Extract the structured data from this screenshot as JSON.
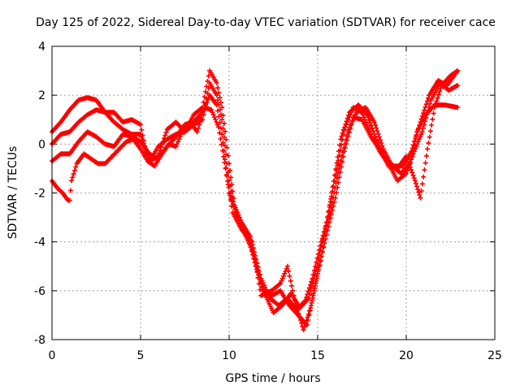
{
  "chart_data": {
    "type": "scatter",
    "title": "Day 125 of 2022, Sidereal Day-to-day VTEC variation (SDTVAR) for receiver cace",
    "xlabel": "GPS time / hours",
    "ylabel": "SDTVAR / TECUs",
    "xlim": [
      0,
      25
    ],
    "ylim": [
      -8,
      4
    ],
    "xticks": [
      "0",
      "5",
      "10",
      "15",
      "20",
      "25"
    ],
    "yticks": [
      "-8",
      "-6",
      "-4",
      "-2",
      "0",
      "2",
      "4"
    ],
    "grid": true,
    "marker": "+",
    "color": "#ff0000",
    "series": [
      {
        "points": [
          [
            0.0,
            0.5
          ],
          [
            0.5,
            0.9
          ],
          [
            1.0,
            1.4
          ],
          [
            1.5,
            1.8
          ],
          [
            2.0,
            1.9
          ],
          [
            2.5,
            1.8
          ],
          [
            3.0,
            1.3
          ],
          [
            3.5,
            1.3
          ],
          [
            4.0,
            0.9
          ],
          [
            4.5,
            1.0
          ],
          [
            5.0,
            0.8
          ],
          [
            5.3,
            -0.3
          ],
          [
            5.6,
            -0.6
          ],
          [
            6.0,
            -0.1
          ],
          [
            6.5,
            0.2
          ],
          [
            7.0,
            0.4
          ],
          [
            7.5,
            0.5
          ],
          [
            8.0,
            1.2
          ],
          [
            8.5,
            1.5
          ],
          [
            8.9,
            3.0
          ],
          [
            9.3,
            2.5
          ],
          [
            9.6,
            1.5
          ],
          [
            10.0,
            -0.8
          ],
          [
            10.3,
            -2.5
          ],
          [
            10.7,
            -3.2
          ],
          [
            11.2,
            -3.8
          ],
          [
            11.8,
            -5.5
          ],
          [
            12.3,
            -6.3
          ],
          [
            12.8,
            -6.6
          ],
          [
            13.3,
            -6.3
          ],
          [
            13.8,
            -6.8
          ],
          [
            14.3,
            -6.4
          ],
          [
            14.7,
            -5.5
          ],
          [
            15.2,
            -4.0
          ],
          [
            15.7,
            -2.8
          ],
          [
            16.2,
            -1.0
          ],
          [
            16.7,
            0.5
          ],
          [
            17.2,
            1.3
          ],
          [
            17.7,
            1.5
          ],
          [
            18.2,
            0.9
          ],
          [
            18.7,
            -0.2
          ],
          [
            19.2,
            -0.9
          ],
          [
            19.7,
            -1.2
          ],
          [
            20.2,
            -0.8
          ],
          [
            20.6,
            0.5
          ],
          [
            21.1,
            1.2
          ],
          [
            21.6,
            1.6
          ],
          [
            22.2,
            1.6
          ],
          [
            22.9,
            1.5
          ]
        ]
      },
      {
        "points": [
          [
            0.0,
            0.0
          ],
          [
            0.5,
            0.4
          ],
          [
            1.0,
            0.5
          ],
          [
            1.5,
            0.9
          ],
          [
            2.0,
            1.2
          ],
          [
            2.5,
            1.4
          ],
          [
            3.0,
            1.3
          ],
          [
            3.5,
            0.9
          ],
          [
            4.0,
            0.6
          ],
          [
            4.5,
            0.4
          ],
          [
            5.0,
            0.4
          ],
          [
            5.5,
            -0.7
          ],
          [
            6.0,
            -0.5
          ],
          [
            6.5,
            0.6
          ],
          [
            7.0,
            0.9
          ],
          [
            7.5,
            0.5
          ],
          [
            8.0,
            0.8
          ],
          [
            8.5,
            1.0
          ],
          [
            8.9,
            2.5
          ],
          [
            9.3,
            2.0
          ],
          [
            9.6,
            1.0
          ],
          [
            10.0,
            -1.5
          ],
          [
            10.4,
            -3.0
          ],
          [
            10.9,
            -3.7
          ],
          [
            11.4,
            -4.5
          ],
          [
            11.9,
            -6.0
          ],
          [
            12.4,
            -6.2
          ],
          [
            12.9,
            -6.0
          ],
          [
            13.4,
            -6.6
          ],
          [
            13.9,
            -7.0
          ],
          [
            14.4,
            -7.4
          ],
          [
            14.8,
            -6.0
          ],
          [
            15.3,
            -4.2
          ],
          [
            15.8,
            -2.0
          ],
          [
            16.3,
            0.2
          ],
          [
            16.8,
            1.3
          ],
          [
            17.3,
            1.6
          ],
          [
            17.8,
            1.2
          ],
          [
            18.3,
            0.2
          ],
          [
            18.8,
            -0.6
          ],
          [
            19.3,
            -0.9
          ],
          [
            19.8,
            -0.9
          ],
          [
            20.3,
            -0.3
          ],
          [
            20.8,
            0.9
          ],
          [
            21.3,
            2.0
          ],
          [
            21.8,
            2.6
          ],
          [
            22.3,
            2.4
          ],
          [
            22.9,
            3.0
          ]
        ]
      },
      {
        "points": [
          [
            0.0,
            -0.7
          ],
          [
            0.5,
            -0.4
          ],
          [
            1.0,
            -0.4
          ],
          [
            1.5,
            0.1
          ],
          [
            2.0,
            0.5
          ],
          [
            2.5,
            0.3
          ],
          [
            3.0,
            0.0
          ],
          [
            3.5,
            -0.1
          ],
          [
            4.0,
            0.4
          ],
          [
            4.5,
            0.3
          ],
          [
            5.0,
            0.1
          ],
          [
            5.5,
            -0.4
          ],
          [
            6.0,
            -0.6
          ],
          [
            6.5,
            -0.1
          ],
          [
            7.0,
            0.3
          ],
          [
            7.5,
            0.8
          ],
          [
            8.0,
            0.9
          ],
          [
            8.5,
            1.3
          ],
          [
            8.9,
            2.0
          ],
          [
            9.3,
            1.6
          ],
          [
            9.6,
            0.4
          ],
          [
            10.0,
            -2.0
          ],
          [
            10.5,
            -3.0
          ],
          [
            11.0,
            -3.6
          ],
          [
            11.5,
            -5.0
          ],
          [
            12.0,
            -6.1
          ],
          [
            12.5,
            -6.9
          ],
          [
            13.0,
            -6.6
          ],
          [
            13.5,
            -6.1
          ],
          [
            14.0,
            -6.7
          ],
          [
            14.5,
            -6.3
          ],
          [
            15.0,
            -4.9
          ],
          [
            15.5,
            -3.2
          ],
          [
            16.0,
            -1.3
          ],
          [
            16.5,
            0.6
          ],
          [
            17.0,
            1.5
          ],
          [
            17.5,
            1.3
          ],
          [
            18.0,
            0.4
          ],
          [
            18.5,
            -0.3
          ],
          [
            19.0,
            -0.8
          ],
          [
            19.5,
            -1.5
          ],
          [
            20.0,
            -1.2
          ],
          [
            20.4,
            -0.4
          ],
          [
            20.9,
            0.5
          ],
          [
            21.4,
            1.8
          ],
          [
            21.9,
            2.5
          ],
          [
            22.4,
            2.2
          ],
          [
            22.9,
            2.4
          ]
        ]
      },
      {
        "points": [
          [
            0.0,
            -1.5
          ],
          [
            0.3,
            -1.8
          ],
          [
            0.6,
            -2.0
          ],
          [
            0.9,
            -2.3
          ],
          [
            1.0,
            -2.3
          ],
          [
            1.1,
            -1.5
          ],
          [
            1.4,
            -0.8
          ],
          [
            1.8,
            -0.4
          ],
          [
            2.2,
            -0.6
          ],
          [
            2.6,
            -0.8
          ],
          [
            3.0,
            -0.8
          ],
          [
            3.4,
            -0.5
          ],
          [
            3.8,
            -0.2
          ],
          [
            4.2,
            0.1
          ],
          [
            4.6,
            0.2
          ],
          [
            5.0,
            -0.2
          ],
          [
            5.4,
            -0.7
          ],
          [
            5.8,
            -0.9
          ],
          [
            6.2,
            -0.4
          ],
          [
            6.6,
            0.0
          ],
          [
            7.0,
            -0.1
          ],
          [
            7.4,
            0.6
          ],
          [
            7.8,
            0.9
          ],
          [
            8.2,
            0.5
          ],
          [
            8.6,
            1.5
          ],
          [
            9.0,
            1.4
          ],
          [
            9.4,
            0.7
          ],
          [
            9.8,
            -1.0
          ],
          [
            10.2,
            -2.8
          ],
          [
            10.7,
            -3.5
          ],
          [
            11.3,
            -4.0
          ],
          [
            11.8,
            -6.2
          ],
          [
            12.4,
            -6.0
          ],
          [
            12.9,
            -5.7
          ],
          [
            13.3,
            -5.0
          ],
          [
            13.7,
            -6.4
          ],
          [
            14.2,
            -7.6
          ],
          [
            14.6,
            -6.7
          ],
          [
            15.0,
            -5.3
          ],
          [
            15.5,
            -3.7
          ],
          [
            16.0,
            -2.2
          ],
          [
            16.5,
            -0.3
          ],
          [
            17.0,
            1.1
          ],
          [
            17.5,
            1.0
          ],
          [
            18.0,
            0.3
          ],
          [
            18.5,
            -0.2
          ],
          [
            19.0,
            -0.9
          ],
          [
            19.5,
            -1.0
          ],
          [
            20.0,
            -0.5
          ],
          [
            20.5,
            -1.5
          ],
          [
            20.8,
            -2.2
          ],
          [
            21.2,
            -0.2
          ],
          [
            21.6,
            1.5
          ],
          [
            22.0,
            2.4
          ],
          [
            22.5,
            2.8
          ],
          [
            22.9,
            3.0
          ]
        ]
      }
    ]
  }
}
